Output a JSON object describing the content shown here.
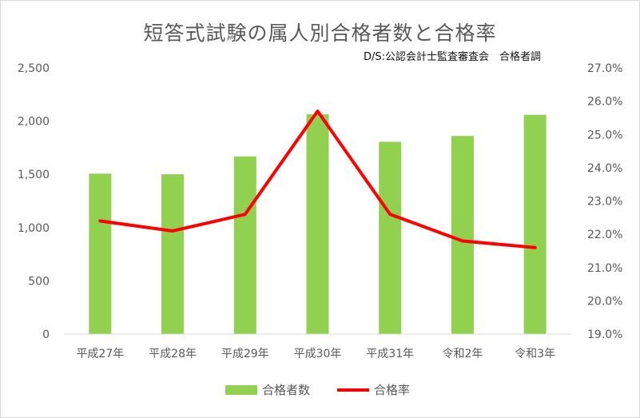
{
  "chart_data": {
    "type": "bar",
    "title": "短答式試験の属人別合格者数と合格率",
    "note": "D/S:公認会計士監査審査会　合格者調",
    "categories": [
      "平成27年",
      "平成28年",
      "平成29年",
      "平成30年",
      "平成31年",
      "令和2年",
      "令和3年"
    ],
    "series": [
      {
        "name": "合格者数",
        "type": "bar",
        "axis": "left",
        "color": "#92d050",
        "values": [
          1507,
          1501,
          1669,
          2065,
          1806,
          1861,
          2060
        ]
      },
      {
        "name": "合格率",
        "type": "line",
        "axis": "right",
        "color": "#ff0000",
        "values": [
          22.4,
          22.1,
          22.6,
          25.7,
          22.6,
          21.8,
          21.6
        ]
      }
    ],
    "ylim": [
      0,
      2500
    ],
    "yticks": [
      "0",
      "500",
      "1,000",
      "1,500",
      "2,000",
      "2,500"
    ],
    "y2lim": [
      19,
      27
    ],
    "y2ticks": [
      "19.0%",
      "20.0%",
      "21.0%",
      "22.0%",
      "23.0%",
      "24.0%",
      "25.0%",
      "26.0%",
      "27.0%"
    ],
    "legend_position": "bottom",
    "grid": false
  }
}
